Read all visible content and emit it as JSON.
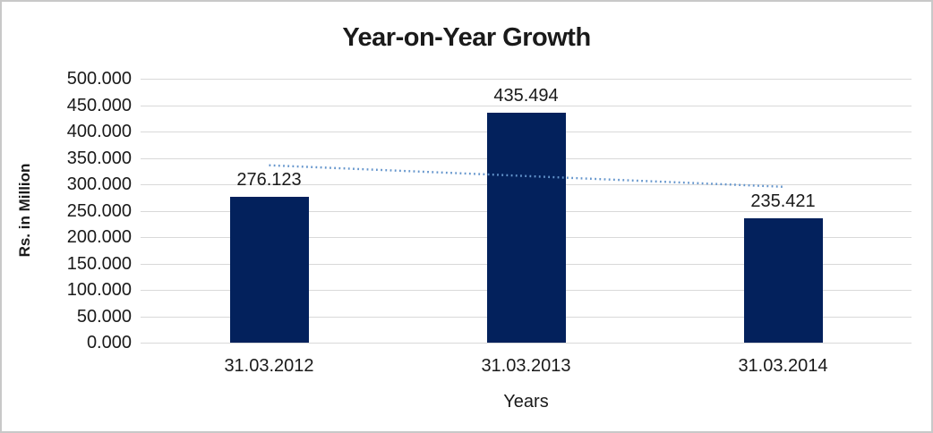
{
  "chart_data": {
    "type": "bar",
    "title": "Year-on-Year Growth",
    "xlabel": "Years",
    "ylabel": "Rs. in Million",
    "categories": [
      "31.03.2012",
      "31.03.2013",
      "31.03.2014"
    ],
    "values": [
      276.123,
      435.494,
      235.421
    ],
    "data_labels": [
      "276.123",
      "435.494",
      "235.421"
    ],
    "ylim": [
      0,
      500
    ],
    "ytick_step": 50,
    "ytick_labels": [
      "500.000",
      "450.000",
      "400.000",
      "350.000",
      "300.000",
      "250.000",
      "200.000",
      "150.000",
      "100.000",
      "50.000",
      "0.000"
    ],
    "grid": true,
    "legend": "none",
    "trendline": {
      "type": "linear",
      "style": "dotted",
      "start_value": 336.0,
      "end_value": 295.3
    },
    "colors": {
      "bar": "#03215C",
      "trendline": "#6495CC",
      "gridline": "#D9D9D9",
      "text": "#1A1A1A",
      "frame_border": "#C8C8C8"
    }
  }
}
